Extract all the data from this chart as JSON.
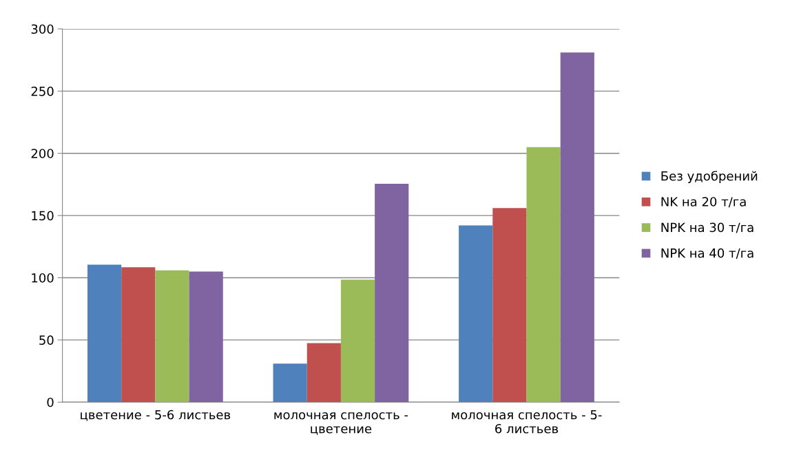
{
  "chart_data": {
    "type": "bar",
    "categories": [
      "цветение - 5-6 листьев",
      "молочная спелость -\nцветение",
      "молочная спелость - 5-\n6 листьев"
    ],
    "series": [
      {
        "name": "Без удобрений",
        "color": "#4f81bd",
        "values": [
          110.5,
          31,
          142
        ]
      },
      {
        "name": "NK на 20 т/га",
        "color": "#c0504d",
        "values": [
          108.5,
          47.5,
          156
        ]
      },
      {
        "name": "NPK на 30 т/га",
        "color": "#9bbb59",
        "values": [
          106,
          98.5,
          205
        ]
      },
      {
        "name": "NPK на 40 т/га",
        "color": "#8064a2",
        "values": [
          105,
          175.5,
          281
        ]
      }
    ],
    "ylim": [
      0,
      300
    ],
    "yticks": [
      0,
      50,
      100,
      150,
      200,
      250,
      300
    ],
    "grid": "y",
    "legend": "right"
  }
}
